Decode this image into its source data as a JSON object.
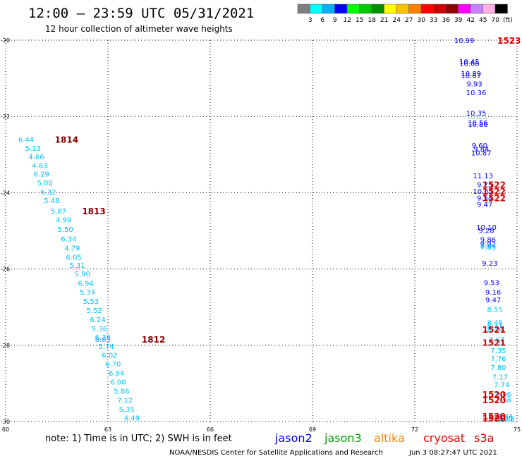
{
  "chart_data": {
    "type": "scatter",
    "title": "12:00 — 23:59 UTC 05/31/2021",
    "subtitle": "12 hour collection of altimeter wave heights",
    "xlim": [
      60,
      75
    ],
    "ylim": [
      -30,
      -20
    ],
    "x_ticks": [
      "60",
      "63",
      "66",
      "69",
      "72",
      "75"
    ],
    "y_ticks": [
      "-20",
      "-22",
      "-24",
      "-26",
      "-28",
      "-30"
    ],
    "grid": true,
    "colorbar": {
      "labels": [
        "3",
        "6",
        "9",
        "12",
        "15",
        "18",
        "21",
        "24",
        "27",
        "30",
        "33",
        "36",
        "39",
        "42",
        "45",
        "70",
        "(ft)"
      ],
      "colors": [
        "#808080",
        "#00ffff",
        "#00b0ff",
        "#0000ff",
        "#00ff00",
        "#00c800",
        "#009000",
        "#ffff00",
        "#ffc000",
        "#ff8000",
        "#ff0000",
        "#c80000",
        "#900000",
        "#ff00ff",
        "#c880ff",
        "#ffb0e0",
        "#000000"
      ]
    },
    "series": [
      {
        "name": "jason2",
        "color": "#0000ff",
        "points": [
          {
            "x": 73.45,
            "y": -20.0,
            "v": "10.99"
          },
          {
            "x": 73.6,
            "y": -20.55,
            "v": "10.45"
          },
          {
            "x": 73.6,
            "y": -20.6,
            "v": "10.66"
          },
          {
            "x": 73.65,
            "y": -20.87,
            "v": "10.89"
          },
          {
            "x": 73.65,
            "y": -20.92,
            "v": "10.67"
          },
          {
            "x": 73.75,
            "y": -21.14,
            "v": "9.93"
          },
          {
            "x": 73.8,
            "y": -21.37,
            "v": "10.36"
          },
          {
            "x": 73.8,
            "y": -21.9,
            "v": "10.35"
          },
          {
            "x": 73.85,
            "y": -22.15,
            "v": "10.56"
          },
          {
            "x": 73.85,
            "y": -22.2,
            "v": "10.86"
          },
          {
            "x": 73.9,
            "y": -22.75,
            "v": "9.60"
          },
          {
            "x": 73.95,
            "y": -22.85,
            "v": "9.84"
          },
          {
            "x": 73.95,
            "y": -22.95,
            "v": "10.87"
          },
          {
            "x": 74.0,
            "y": -23.55,
            "v": "11.13"
          },
          {
            "x": 74.05,
            "y": -23.78,
            "v": "9.75"
          },
          {
            "x": 74.0,
            "y": -23.96,
            "v": "10.67"
          },
          {
            "x": 74.05,
            "y": -24.13,
            "v": "9.54"
          },
          {
            "x": 74.05,
            "y": -24.3,
            "v": "9.47"
          },
          {
            "x": 74.1,
            "y": -24.9,
            "v": "10.10"
          },
          {
            "x": 74.1,
            "y": -24.98,
            "v": "9.28"
          },
          {
            "x": 74.15,
            "y": -25.22,
            "v": "9.86"
          },
          {
            "x": 74.15,
            "y": -25.33,
            "v": "9.02"
          },
          {
            "x": 74.2,
            "y": -25.84,
            "v": "9.23"
          },
          {
            "x": 74.25,
            "y": -26.35,
            "v": "9.53"
          },
          {
            "x": 74.3,
            "y": -26.6,
            "v": "9.16"
          },
          {
            "x": 74.3,
            "y": -26.8,
            "v": "9.47"
          }
        ]
      },
      {
        "name": "jason3",
        "color": "#00a000",
        "points": [
          {
            "x": 73.85,
            "y": -22.05,
            "v": ""
          }
        ]
      },
      {
        "name": "altika",
        "color": "#ff8000",
        "points": []
      },
      {
        "name": "cryosat",
        "color": "#ff0000",
        "points": []
      },
      {
        "name": "s3a",
        "color": "#00c0ff",
        "points": [
          {
            "x": 60.6,
            "y": -22.6,
            "v": "6.44"
          },
          {
            "x": 60.8,
            "y": -22.83,
            "v": "5.13"
          },
          {
            "x": 60.9,
            "y": -23.05,
            "v": "4.66"
          },
          {
            "x": 61.0,
            "y": -23.28,
            "v": "4.63"
          },
          {
            "x": 61.05,
            "y": -23.5,
            "v": "6.29"
          },
          {
            "x": 61.15,
            "y": -23.73,
            "v": "5.00"
          },
          {
            "x": 61.25,
            "y": -23.97,
            "v": "6.32"
          },
          {
            "x": 61.35,
            "y": -24.2,
            "v": "5.48"
          },
          {
            "x": 61.55,
            "y": -24.47,
            "v": "5.87"
          },
          {
            "x": 61.7,
            "y": -24.7,
            "v": "4.99"
          },
          {
            "x": 61.75,
            "y": -24.95,
            "v": "5.50"
          },
          {
            "x": 61.85,
            "y": -25.2,
            "v": "6.34"
          },
          {
            "x": 61.95,
            "y": -25.44,
            "v": "4.79"
          },
          {
            "x": 62.0,
            "y": -25.68,
            "v": "6.05"
          },
          {
            "x": 62.1,
            "y": -25.9,
            "v": "5.31"
          },
          {
            "x": 62.25,
            "y": -26.12,
            "v": "5.90"
          },
          {
            "x": 62.35,
            "y": -26.37,
            "v": "6.94"
          },
          {
            "x": 62.4,
            "y": -26.6,
            "v": "5.34"
          },
          {
            "x": 62.5,
            "y": -26.84,
            "v": "5.53"
          },
          {
            "x": 62.6,
            "y": -27.08,
            "v": "5.52"
          },
          {
            "x": 62.7,
            "y": -27.32,
            "v": "6.24"
          },
          {
            "x": 62.75,
            "y": -27.56,
            "v": "5.36"
          },
          {
            "x": 62.85,
            "y": -27.78,
            "v": "6.28"
          },
          {
            "x": 62.85,
            "y": -27.84,
            "v": "6.05"
          },
          {
            "x": 62.95,
            "y": -28.02,
            "v": "5.74"
          },
          {
            "x": 63.05,
            "y": -28.25,
            "v": "6.02"
          },
          {
            "x": 63.15,
            "y": -28.48,
            "v": "6.70"
          },
          {
            "x": 63.25,
            "y": -28.72,
            "v": "6.94"
          },
          {
            "x": 63.3,
            "y": -28.96,
            "v": "6.00"
          },
          {
            "x": 63.4,
            "y": -29.2,
            "v": "5.86"
          },
          {
            "x": 63.5,
            "y": -29.44,
            "v": "7.12"
          },
          {
            "x": 63.55,
            "y": -29.68,
            "v": "5.35"
          },
          {
            "x": 63.7,
            "y": -29.9,
            "v": "4.49"
          },
          {
            "x": 74.15,
            "y": -25.39,
            "v": "8.04"
          },
          {
            "x": 74.15,
            "y": -25.42,
            "v": "7.83"
          },
          {
            "x": 74.35,
            "y": -27.05,
            "v": "8.55"
          },
          {
            "x": 74.35,
            "y": -27.4,
            "v": "8.45"
          },
          {
            "x": 74.35,
            "y": -27.48,
            "v": "8.31"
          },
          {
            "x": 74.35,
            "y": -27.58,
            "v": "8.34"
          },
          {
            "x": 74.4,
            "y": -27.85,
            "v": "7.67"
          },
          {
            "x": 74.4,
            "y": -27.92,
            "v": "7.33"
          },
          {
            "x": 74.45,
            "y": -28.13,
            "v": "7.35"
          },
          {
            "x": 74.45,
            "y": -28.35,
            "v": "7.76"
          },
          {
            "x": 74.45,
            "y": -28.58,
            "v": "7.80"
          },
          {
            "x": 74.5,
            "y": -28.83,
            "v": "7.17"
          },
          {
            "x": 74.55,
            "y": -29.03,
            "v": "7.74"
          },
          {
            "x": 74.6,
            "y": -29.28,
            "v": "8.06"
          },
          {
            "x": 74.6,
            "y": -29.43,
            "v": "7.58"
          },
          {
            "x": 74.65,
            "y": -29.85,
            "v": "7.84"
          },
          {
            "x": 74.65,
            "y": -29.91,
            "v": "8.00"
          },
          {
            "x": 74.7,
            "y": -29.93,
            "v": "8.08"
          }
        ]
      }
    ],
    "time_labels": [
      {
        "x": 74.38,
        "y": -20.0,
        "text": "1523",
        "color": "#dd0000"
      },
      {
        "x": 75.0,
        "y": -23.78,
        "text": "1522",
        "color": "#dd0000"
      },
      {
        "x": 75.0,
        "y": -23.96,
        "text": "1522",
        "color": "#dd0000"
      },
      {
        "x": 75.0,
        "y": -24.13,
        "text": "1522",
        "color": "#dd0000"
      },
      {
        "x": 75.0,
        "y": -27.58,
        "text": "1521",
        "color": "#dd0000"
      },
      {
        "x": 75.0,
        "y": -27.92,
        "text": "1521",
        "color": "#dd0000"
      },
      {
        "x": 75.0,
        "y": -29.28,
        "text": "1520",
        "color": "#dd0000"
      },
      {
        "x": 75.0,
        "y": -29.43,
        "text": "1520",
        "color": "#dd0000"
      },
      {
        "x": 75.0,
        "y": -29.85,
        "text": "1520",
        "color": "#dd0000"
      },
      {
        "x": 75.0,
        "y": -29.91,
        "text": "1520",
        "color": "#dd0000"
      },
      {
        "x": 61.4,
        "y": -22.6,
        "text": "1814",
        "color": "#8b0000"
      },
      {
        "x": 62.2,
        "y": -24.47,
        "text": "1813",
        "color": "#8b0000"
      },
      {
        "x": 63.95,
        "y": -27.84,
        "text": "1812",
        "color": "#8b0000"
      }
    ]
  },
  "footer": {
    "note": "note:  1) Time is in UTC;  2) SWH is in feet",
    "legend": [
      {
        "name": "jason2",
        "color": "#0000ff"
      },
      {
        "name": "jason3",
        "color": "#00a000"
      },
      {
        "name": "altika",
        "color": "#ff8000"
      },
      {
        "name": "cryosat",
        "color": "#ff0000"
      },
      {
        "name": "s3a",
        "color": "#cc0000"
      }
    ],
    "credit": "NOAA/NESDIS Center for Satellite Applications and Research",
    "timestamp": "Jun  3 08:27:47 UTC 2021"
  }
}
